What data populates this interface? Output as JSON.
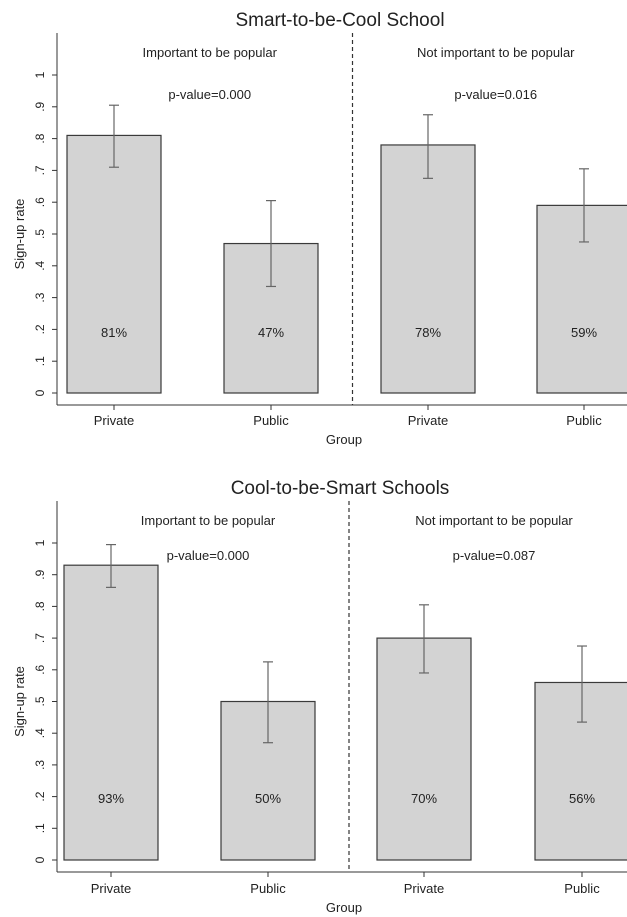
{
  "chart_data": [
    {
      "type": "bar",
      "title": "Smart-to-be-Cool School",
      "xlabel": "Group",
      "ylabel": "Sign-up rate",
      "ylim": [
        0,
        1
      ],
      "yticks": [
        "0",
        ".1",
        ".2",
        ".3",
        ".4",
        ".5",
        ".6",
        ".7",
        ".8",
        ".9",
        "1"
      ],
      "panels": [
        {
          "label": "Important to be popular",
          "p_value": "p-value=0.000",
          "categories": [
            "Private",
            "Public"
          ],
          "values": [
            0.81,
            0.47
          ],
          "ci_low": [
            0.71,
            0.335
          ],
          "ci_high": [
            0.905,
            0.605
          ],
          "bar_labels": [
            "81%",
            "47%"
          ]
        },
        {
          "label": "Not important to be popular",
          "p_value": "p-value=0.016",
          "categories": [
            "Private",
            "Public"
          ],
          "values": [
            0.78,
            0.59
          ],
          "ci_low": [
            0.675,
            0.475
          ],
          "ci_high": [
            0.875,
            0.705
          ],
          "bar_labels": [
            "78%",
            "59%"
          ]
        }
      ],
      "colors": {
        "bar_fill": "#d3d3d3",
        "bar_stroke": "#3a3a3a",
        "error_bar": "#666666"
      }
    },
    {
      "type": "bar",
      "title": "Cool-to-be-Smart Schools",
      "xlabel": "Group",
      "ylabel": "Sign-up rate",
      "ylim": [
        0,
        1
      ],
      "yticks": [
        "0",
        ".1",
        ".2",
        ".3",
        ".4",
        ".5",
        ".6",
        ".7",
        ".8",
        ".9",
        "1"
      ],
      "panels": [
        {
          "label": "Important to be popular",
          "p_value": "p-value=0.000",
          "categories": [
            "Private",
            "Public"
          ],
          "values": [
            0.93,
            0.5
          ],
          "ci_low": [
            0.86,
            0.37
          ],
          "ci_high": [
            0.995,
            0.625
          ],
          "bar_labels": [
            "93%",
            "50%"
          ]
        },
        {
          "label": "Not important to be popular",
          "p_value": "p-value=0.087",
          "categories": [
            "Private",
            "Public"
          ],
          "values": [
            0.7,
            0.56
          ],
          "ci_low": [
            0.59,
            0.435
          ],
          "ci_high": [
            0.805,
            0.675
          ],
          "bar_labels": [
            "70%",
            "56%"
          ]
        }
      ],
      "colors": {
        "bar_fill": "#d3d3d3",
        "bar_stroke": "#3a3a3a",
        "error_bar": "#666666"
      }
    }
  ]
}
